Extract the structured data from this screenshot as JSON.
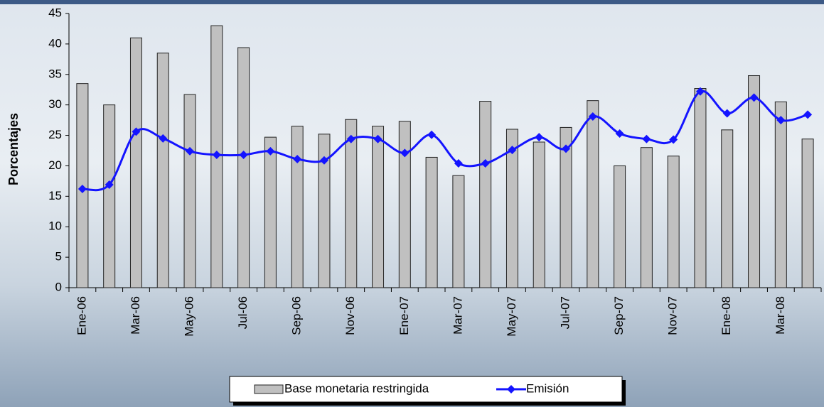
{
  "chart_data": {
    "type": "bar",
    "y_label": "Porcentajes",
    "categories": [
      "Ene-06",
      null,
      "Mar-06",
      null,
      "May-06",
      null,
      "Jul-06",
      null,
      "Sep-06",
      null,
      "Nov-06",
      null,
      "Ene-07",
      null,
      "Mar-07",
      null,
      "May-07",
      null,
      "Jul-07",
      null,
      "Sep-07",
      null,
      "Nov-07",
      null,
      "Ene-08",
      null,
      "Mar-08",
      null
    ],
    "series": [
      {
        "name": "Base monetaria restringida",
        "type": "bar",
        "color": "#c0c0c0",
        "values": [
          33.5,
          30,
          41,
          38.5,
          31.7,
          43,
          39.4,
          24.7,
          26.5,
          25.2,
          27.6,
          26.5,
          27.3,
          21.4,
          18.4,
          30.6,
          26,
          23.9,
          26.3,
          30.7,
          20,
          23,
          21.6,
          32.7,
          25.9,
          34.8,
          30.5,
          24.4
        ]
      },
      {
        "name": "Emisión",
        "type": "line",
        "color": "#1414ff",
        "values": [
          16.2,
          16.9,
          25.6,
          24.5,
          22.4,
          21.8,
          21.8,
          22.4,
          21.1,
          20.9,
          24.4,
          24.4,
          22.1,
          25.1,
          20.4,
          20.4,
          22.6,
          24.7,
          22.8,
          28.1,
          25.3,
          24.4,
          24.3,
          32.2,
          28.6,
          31.2,
          27.5,
          28.4
        ]
      }
    ],
    "ylim": [
      0,
      45
    ],
    "yticks": [
      0,
      5,
      10,
      15,
      20,
      25,
      30,
      35,
      40,
      45
    ],
    "legend": "bottom"
  }
}
